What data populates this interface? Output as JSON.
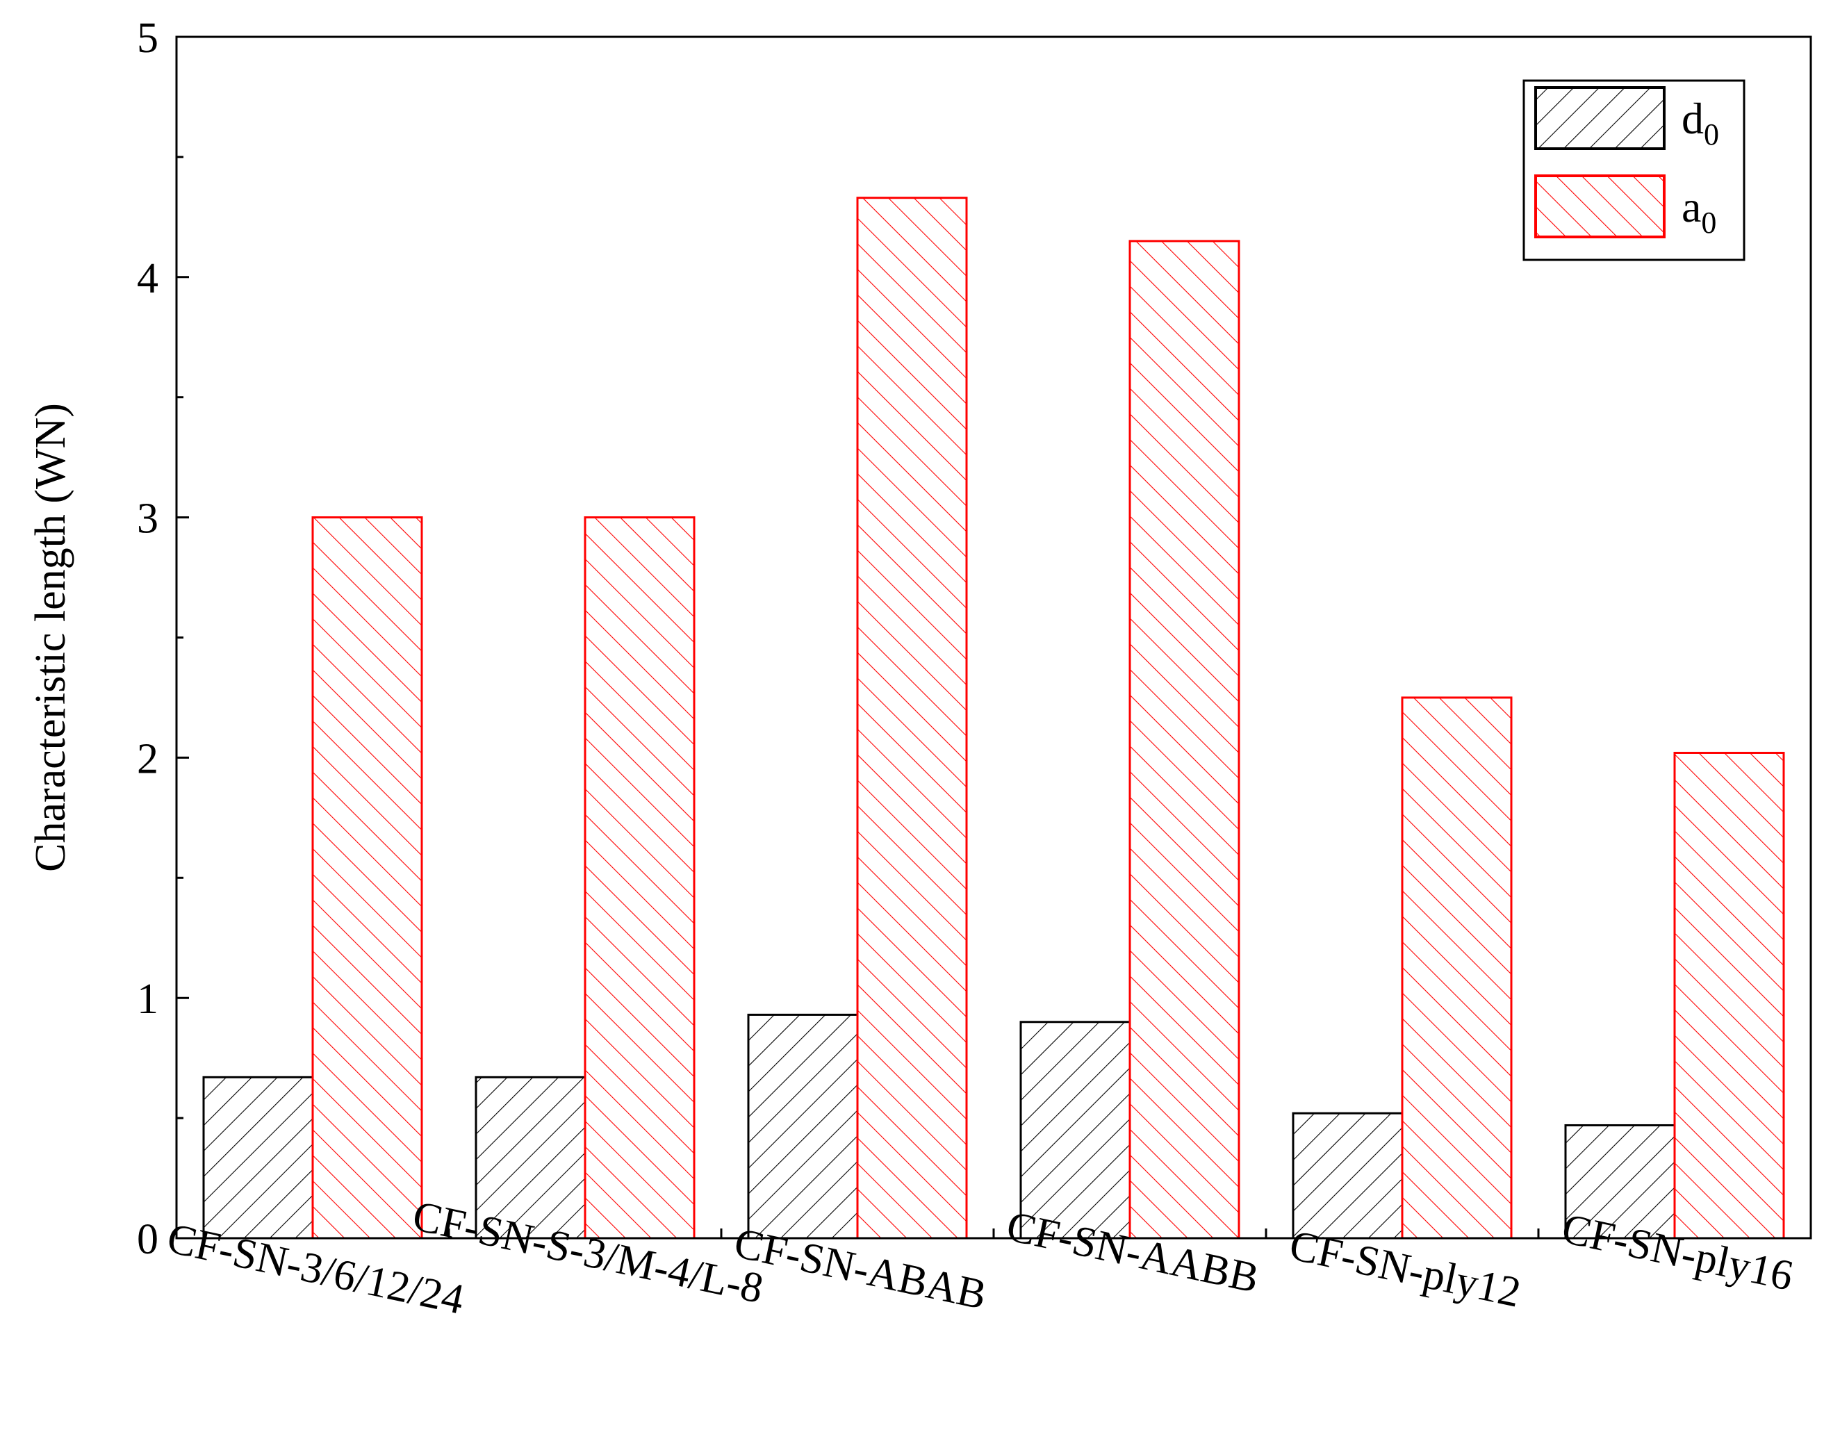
{
  "chart_data": {
    "type": "bar",
    "xlabel": "",
    "ylabel": "Characteristic length (WN)",
    "ylim": [
      0,
      5
    ],
    "yticks": [
      "0",
      "1",
      "2",
      "3",
      "4",
      "5"
    ],
    "categories": [
      "CF-SN-3/6/12/24",
      "CF-SN-S-3/M-4/L-8",
      "CF-SN-ABAB",
      "CF-SN-AABB",
      "CF-SN-ply12",
      "CF-SN-ply16"
    ],
    "series": [
      {
        "name": "d",
        "subscript": "0",
        "color": "#000000",
        "hatch": "backslash",
        "values": [
          0.67,
          0.67,
          0.93,
          0.9,
          0.52,
          0.47
        ]
      },
      {
        "name": "a",
        "subscript": "0",
        "color": "#ff0000",
        "hatch": "slash",
        "values": [
          3.0,
          3.0,
          4.33,
          4.15,
          2.25,
          2.02
        ]
      }
    ],
    "legend_position": "top-right",
    "grid": false
  }
}
